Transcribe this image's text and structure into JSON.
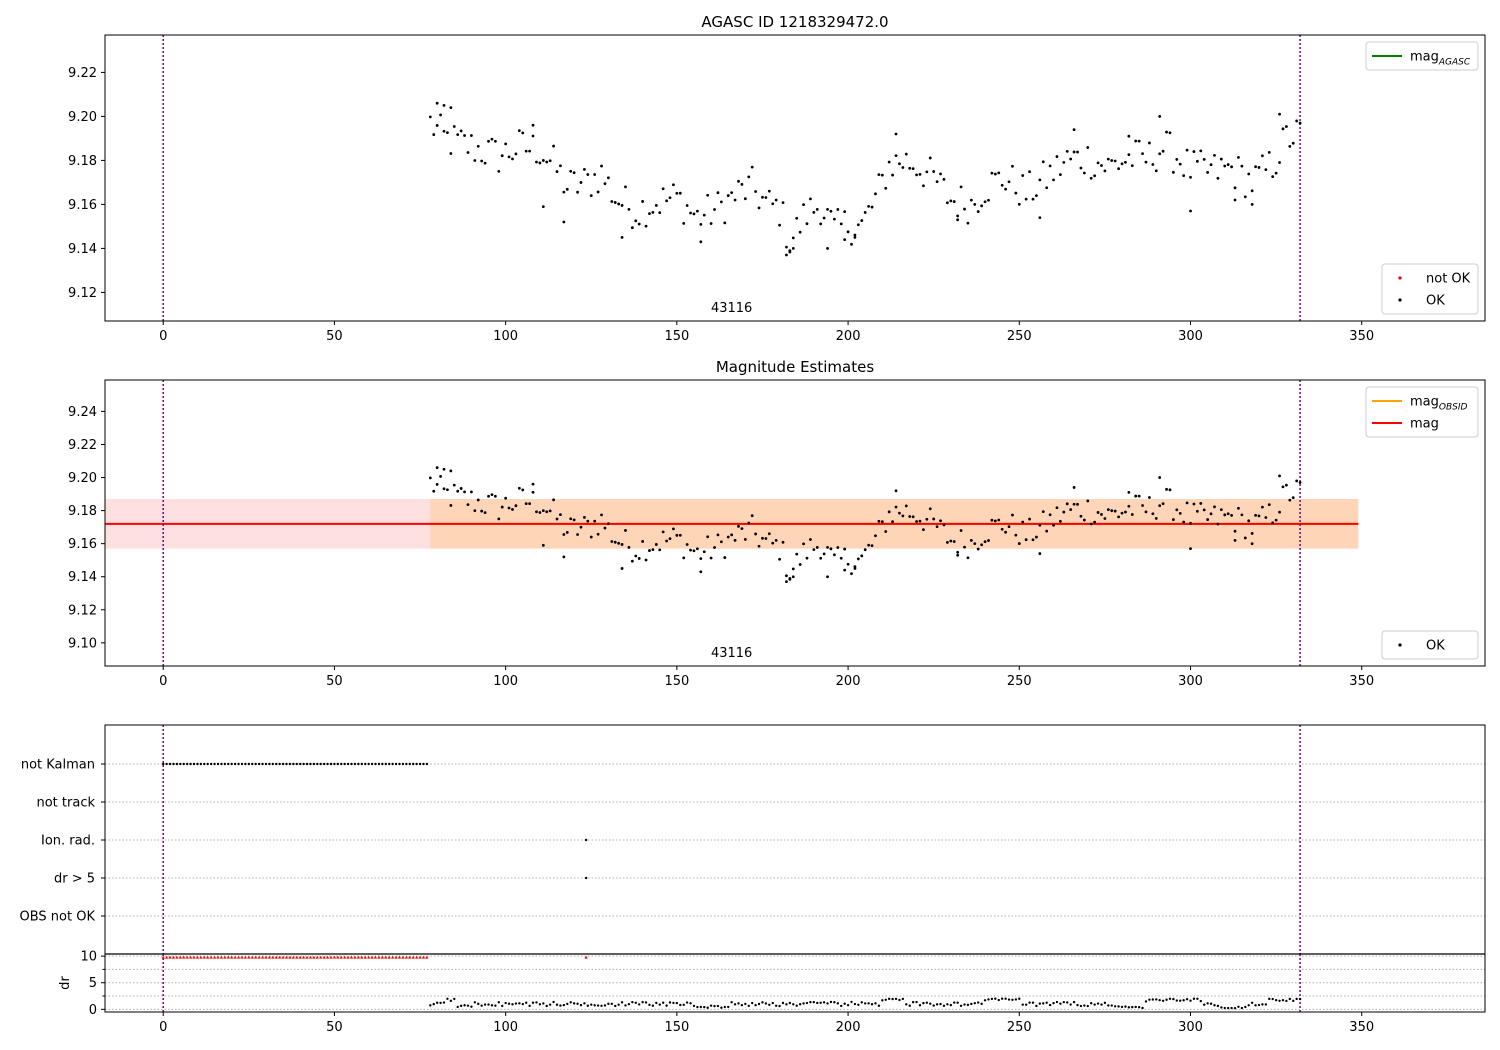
{
  "figure": {
    "title": "AGASC ID 1218329472.0"
  },
  "chart_data": [
    {
      "id": "panel1",
      "type": "scatter",
      "title": "",
      "xlabel": "",
      "ylabel": "",
      "xlim": [
        -17,
        386
      ],
      "ylim": [
        9.107,
        9.237
      ],
      "xticks": [
        0,
        50,
        100,
        150,
        200,
        250,
        300,
        350
      ],
      "yticks": [
        9.12,
        9.14,
        9.16,
        9.18,
        9.2,
        9.22
      ],
      "ytick_decimals": 2,
      "obs_boundaries": [
        0,
        332
      ],
      "obsid_label": {
        "text": "43116",
        "x": 166
      },
      "legends": [
        {
          "loc": "upper right",
          "entries": [
            {
              "label": "mag",
              "sub": "AGASC",
              "style": "line",
              "color": "#008000"
            }
          ]
        },
        {
          "loc": "lower right",
          "entries": [
            {
              "label": "not OK",
              "style": "dot",
              "color": "#ff0000"
            },
            {
              "label": "OK",
              "style": "dot",
              "color": "#000000"
            }
          ]
        }
      ],
      "series_ref": "magnitude_points"
    },
    {
      "id": "panel2",
      "type": "scatter",
      "title": "Magnitude Estimates",
      "xlabel": "",
      "ylabel": "",
      "xlim": [
        -17,
        386
      ],
      "ylim": [
        9.086,
        9.259
      ],
      "xticks": [
        0,
        50,
        100,
        150,
        200,
        250,
        300,
        350
      ],
      "yticks": [
        9.1,
        9.12,
        9.14,
        9.16,
        9.18,
        9.2,
        9.22,
        9.24
      ],
      "ytick_decimals": 2,
      "obs_boundaries": [
        0,
        332
      ],
      "obsid_label": {
        "text": "43116",
        "x": 166
      },
      "mean_mag": 9.172,
      "mag_band": [
        9.157,
        9.187
      ],
      "obsid_band": [
        9.157,
        9.187
      ],
      "band_x": [
        -17,
        349
      ],
      "obsid_band_x": [
        78,
        349
      ],
      "legends": [
        {
          "loc": "upper right",
          "entries": [
            {
              "label": "mag",
              "sub": "OBSID",
              "style": "line",
              "color": "#ffa500"
            },
            {
              "label": "mag",
              "style": "line",
              "color": "#ff0000"
            }
          ]
        },
        {
          "loc": "lower right",
          "entries": [
            {
              "label": "OK",
              "style": "dot",
              "color": "#000000"
            }
          ]
        }
      ],
      "series_ref": "magnitude_points"
    },
    {
      "id": "panel3",
      "type": "scatter",
      "title": "",
      "xlabel": "",
      "ylabel": "",
      "xlim": [
        -17,
        386
      ],
      "categories": [
        "not Kalman",
        "not track",
        "Ion. rad.",
        "dr > 5",
        "OBS not OK"
      ],
      "obs_boundaries": [
        0,
        332
      ],
      "flags": {
        "not Kalman": {
          "x_range": [
            0,
            77
          ],
          "step": 1
        },
        "not track": {
          "points": []
        },
        "Ion. rad.": {
          "points": [
            123.5
          ]
        },
        "dr > 5": {
          "points": [
            123.5
          ]
        },
        "OBS not OK": {
          "points": []
        }
      }
    },
    {
      "id": "panel4",
      "type": "scatter",
      "title": "",
      "xlabel": "",
      "ylabel": "dr",
      "xlim": [
        -17,
        386
      ],
      "ylim": [
        -0.5,
        10.4
      ],
      "yticks": [
        0,
        5,
        10
      ],
      "minor_yticks": [
        2.5,
        7.5
      ],
      "ytick_decimals": 0,
      "obs_boundaries": [
        0,
        332
      ],
      "clipped_points": {
        "x_range": [
          0,
          77
        ],
        "step": 1,
        "y": 9.8,
        "extra": [
          123.5
        ],
        "color": "#ff0000"
      },
      "points_description": "black dots: dr for x 78..332, values mostly 0.5-2"
    }
  ],
  "magnitude_points": {
    "x_start": 78,
    "x_end": 332,
    "keyframes": [
      [
        78,
        9.197
      ],
      [
        82,
        9.19
      ],
      [
        86,
        9.188
      ],
      [
        92,
        9.185
      ],
      [
        98,
        9.182
      ],
      [
        104,
        9.186
      ],
      [
        110,
        9.185
      ],
      [
        114,
        9.178
      ],
      [
        118,
        9.168
      ],
      [
        124,
        9.17
      ],
      [
        128,
        9.174
      ],
      [
        132,
        9.163
      ],
      [
        138,
        9.157
      ],
      [
        144,
        9.161
      ],
      [
        150,
        9.163
      ],
      [
        156,
        9.154
      ],
      [
        162,
        9.158
      ],
      [
        168,
        9.165
      ],
      [
        172,
        9.168
      ],
      [
        176,
        9.16
      ],
      [
        180,
        9.158
      ],
      [
        183,
        9.143
      ],
      [
        188,
        9.156
      ],
      [
        192,
        9.16
      ],
      [
        196,
        9.148
      ],
      [
        200,
        9.151
      ],
      [
        204,
        9.15
      ],
      [
        208,
        9.162
      ],
      [
        212,
        9.178
      ],
      [
        216,
        9.18
      ],
      [
        220,
        9.178
      ],
      [
        226,
        9.17
      ],
      [
        230,
        9.162
      ],
      [
        236,
        9.16
      ],
      [
        240,
        9.168
      ],
      [
        246,
        9.172
      ],
      [
        252,
        9.165
      ],
      [
        258,
        9.172
      ],
      [
        264,
        9.18
      ],
      [
        270,
        9.181
      ],
      [
        276,
        9.177
      ],
      [
        282,
        9.181
      ],
      [
        288,
        9.181
      ],
      [
        292,
        9.186
      ],
      [
        296,
        9.182
      ],
      [
        300,
        9.176
      ],
      [
        306,
        9.175
      ],
      [
        312,
        9.176
      ],
      [
        318,
        9.17
      ],
      [
        324,
        9.178
      ],
      [
        328,
        9.19
      ],
      [
        332,
        9.192
      ]
    ],
    "noise": 0.009,
    "highs": [
      [
        80,
        9.206
      ],
      [
        82,
        9.205
      ],
      [
        84,
        9.204
      ],
      [
        108,
        9.196
      ],
      [
        214,
        9.192
      ],
      [
        266,
        9.194
      ],
      [
        282,
        9.191
      ],
      [
        291,
        9.2
      ],
      [
        326,
        9.201
      ]
    ],
    "lows": [
      [
        111,
        9.159
      ],
      [
        117,
        9.152
      ],
      [
        134,
        9.145
      ],
      [
        157,
        9.143
      ],
      [
        182,
        9.137
      ],
      [
        183,
        9.139
      ],
      [
        184,
        9.14
      ],
      [
        194,
        9.14
      ],
      [
        199,
        9.144
      ],
      [
        202,
        9.145
      ],
      [
        232,
        9.153
      ],
      [
        256,
        9.154
      ],
      [
        300,
        9.157
      ],
      [
        313,
        9.162
      ],
      [
        318,
        9.16
      ]
    ]
  }
}
